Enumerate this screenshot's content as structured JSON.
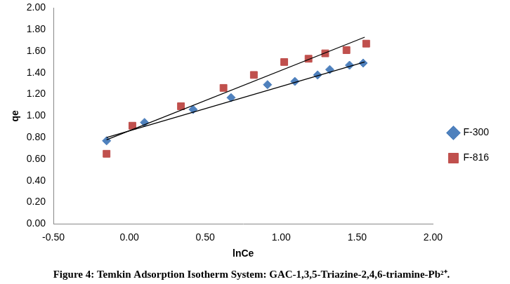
{
  "chart_data": {
    "type": "scatter",
    "title": "Figure 4: Temkin Adsorption Isotherm System: GAC-1,3,5-Triazine-2,4,6-triamine-Pb²⁺.",
    "x_label": "lnCe",
    "y_label": "qe",
    "xlim": [
      -0.5,
      2.0
    ],
    "xticks": [
      {
        "value": -0.5,
        "label": "-0.50"
      },
      {
        "value": 0,
        "label": "0.00"
      },
      {
        "value": 0.5,
        "label": "0.50"
      },
      {
        "value": 1.0,
        "label": "1.00"
      },
      {
        "value": 1.5,
        "label": "1.50"
      },
      {
        "value": 2.0,
        "label": "2.00"
      }
    ],
    "ylim": [
      0,
      2.0
    ],
    "yticks": [
      {
        "value": 0,
        "label": "0.00"
      },
      {
        "value": 0.2,
        "label": "0.20"
      },
      {
        "value": 0.4,
        "label": "0.40"
      },
      {
        "value": 0.6,
        "label": "0.60"
      },
      {
        "value": 0.8,
        "label": "0.80"
      },
      {
        "value": 1.0,
        "label": "1.00"
      },
      {
        "value": 1.2,
        "label": "1.20"
      },
      {
        "value": 1.4,
        "label": "1.40"
      },
      {
        "value": 1.6,
        "label": "1.60"
      },
      {
        "value": 1.8,
        "label": "1.80"
      },
      {
        "value": 2.0,
        "label": "2.00"
      }
    ],
    "grid": false,
    "legend": "right",
    "series": [
      {
        "name": "F-300",
        "color": "#4f81bd",
        "marker": "diamond",
        "x": [
          -0.15,
          0.1,
          0.42,
          0.67,
          0.91,
          1.09,
          1.24,
          1.32,
          1.45,
          1.54
        ],
        "values": [
          0.77,
          0.94,
          1.06,
          1.17,
          1.29,
          1.32,
          1.38,
          1.43,
          1.47,
          1.49
        ],
        "trendline": {
          "x": [
            -0.15,
            1.55
          ],
          "values": [
            0.8,
            1.5
          ],
          "color": "#000000"
        }
      },
      {
        "name": "F-816",
        "color": "#c0504d",
        "marker": "square",
        "x": [
          -0.15,
          0.02,
          0.34,
          0.62,
          0.82,
          1.02,
          1.18,
          1.29,
          1.43,
          1.56
        ],
        "values": [
          0.65,
          0.91,
          1.09,
          1.26,
          1.38,
          1.5,
          1.53,
          1.58,
          1.61,
          1.67
        ],
        "trendline": {
          "x": [
            -0.15,
            1.55
          ],
          "values": [
            0.78,
            1.73
          ],
          "color": "#000000"
        }
      }
    ]
  }
}
